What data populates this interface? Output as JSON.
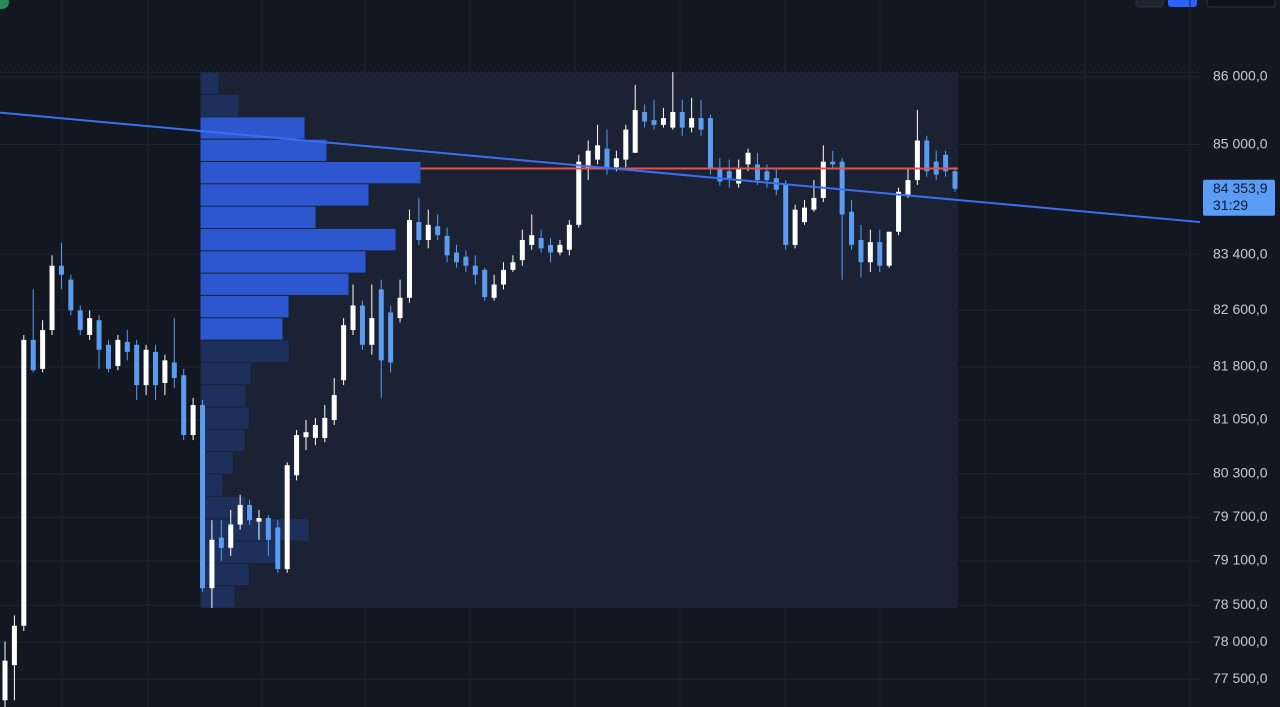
{
  "chart_data": {
    "type": "candlestick",
    "log_scale": true,
    "grid": true,
    "ylim": [
      77130,
      87150
    ],
    "yticks": [
      {
        "value": 86000,
        "label": "86 000,0"
      },
      {
        "value": 85000,
        "label": "85 000,0"
      },
      {
        "value": 83400,
        "label": "83 400,0"
      },
      {
        "value": 82600,
        "label": "82 600,0"
      },
      {
        "value": 81800,
        "label": "81 800,0"
      },
      {
        "value": 81050,
        "label": "81 050,0"
      },
      {
        "value": 80300,
        "label": "80 300,0"
      },
      {
        "value": 79700,
        "label": "79 700,0"
      },
      {
        "value": 79100,
        "label": "79 100,0"
      },
      {
        "value": 78500,
        "label": "78 500,0"
      },
      {
        "value": 78000,
        "label": "78 000,0"
      },
      {
        "value": 77500,
        "label": "77 500,0"
      }
    ],
    "up_color": "#ffffff",
    "down_color": "#5b9cf0",
    "candles": [
      [
        77220,
        78010,
        77130,
        77750
      ],
      [
        77690,
        78360,
        77220,
        78220
      ],
      [
        78220,
        82250,
        78150,
        82180
      ],
      [
        82180,
        82900,
        81720,
        81750
      ],
      [
        81770,
        82460,
        81720,
        82320
      ],
      [
        82320,
        83390,
        82250,
        83240
      ],
      [
        83240,
        83570,
        82900,
        83110
      ],
      [
        83040,
        83110,
        82530,
        82600
      ],
      [
        82600,
        82670,
        82250,
        82320
      ],
      [
        82250,
        82600,
        82180,
        82490
      ],
      [
        82460,
        82530,
        81770,
        82040
      ],
      [
        82110,
        82180,
        81720,
        81770
      ],
      [
        81810,
        82250,
        81750,
        82180
      ],
      [
        82150,
        82320,
        81890,
        82010
      ],
      [
        82110,
        82180,
        81330,
        81540
      ],
      [
        81540,
        82110,
        81400,
        82040
      ],
      [
        82010,
        82110,
        81330,
        81540
      ],
      [
        81570,
        81970,
        81400,
        81890
      ],
      [
        81860,
        82490,
        81500,
        81640
      ],
      [
        81680,
        81770,
        80770,
        80840
      ],
      [
        80840,
        81360,
        80770,
        81260
      ],
      [
        81260,
        81330,
        78680,
        78730
      ],
      [
        78730,
        79660,
        78460,
        79390
      ],
      [
        79420,
        79660,
        79100,
        79280
      ],
      [
        79280,
        79800,
        79170,
        79600
      ],
      [
        79600,
        80010,
        79530,
        79870
      ],
      [
        79870,
        79940,
        79600,
        79660
      ],
      [
        79640,
        79800,
        79390,
        79690
      ],
      [
        79690,
        79730,
        79170,
        79390
      ],
      [
        79560,
        79660,
        78940,
        78990
      ],
      [
        78990,
        80460,
        78940,
        80420
      ],
      [
        80280,
        80910,
        80210,
        80840
      ],
      [
        80810,
        81050,
        80630,
        80880
      ],
      [
        80800,
        81080,
        80700,
        80980
      ],
      [
        80800,
        81260,
        80740,
        81080
      ],
      [
        81050,
        81640,
        80980,
        81400
      ],
      [
        81610,
        82490,
        81540,
        82390
      ],
      [
        82320,
        82970,
        82250,
        82670
      ],
      [
        82670,
        82740,
        82040,
        82110
      ],
      [
        82110,
        82970,
        81970,
        82490
      ],
      [
        82900,
        83040,
        81360,
        81890
      ],
      [
        82570,
        82670,
        81720,
        81860
      ],
      [
        82490,
        83040,
        82430,
        82780
      ],
      [
        82780,
        84050,
        82710,
        83900
      ],
      [
        83870,
        84220,
        83540,
        83610
      ],
      [
        83610,
        84050,
        83490,
        83830
      ],
      [
        83810,
        83980,
        83610,
        83680
      ],
      [
        83670,
        83790,
        83290,
        83390
      ],
      [
        83430,
        83540,
        83210,
        83290
      ],
      [
        83370,
        83460,
        83150,
        83240
      ],
      [
        83240,
        83390,
        82970,
        83110
      ],
      [
        83180,
        83210,
        82740,
        82790
      ],
      [
        82780,
        83110,
        82740,
        82970
      ],
      [
        82970,
        83290,
        82900,
        83180
      ],
      [
        83180,
        83390,
        83150,
        83290
      ],
      [
        83320,
        83760,
        83240,
        83610
      ],
      [
        83540,
        83980,
        83470,
        83680
      ],
      [
        83640,
        83760,
        83430,
        83490
      ],
      [
        83540,
        83640,
        83290,
        83430
      ],
      [
        83430,
        83610,
        83390,
        83540
      ],
      [
        83470,
        83900,
        83390,
        83830
      ],
      [
        83830,
        84850,
        83790,
        84750
      ],
      [
        84640,
        85060,
        84480,
        84910
      ],
      [
        84780,
        85290,
        84710,
        84990
      ],
      [
        84940,
        85220,
        84560,
        84640
      ],
      [
        84670,
        84910,
        84610,
        84800
      ],
      [
        84780,
        85290,
        84670,
        85220
      ],
      [
        84880,
        85880,
        84880,
        85510
      ],
      [
        85480,
        85590,
        85250,
        85340
      ],
      [
        85360,
        85660,
        85220,
        85290
      ],
      [
        85290,
        85540,
        85250,
        85390
      ],
      [
        85250,
        86070,
        85220,
        85480
      ],
      [
        85480,
        85660,
        85130,
        85250
      ],
      [
        85250,
        85690,
        85180,
        85390
      ],
      [
        85390,
        85660,
        85130,
        85220
      ],
      [
        85390,
        85440,
        84560,
        84640
      ],
      [
        84640,
        84800,
        84400,
        84460
      ],
      [
        84610,
        84780,
        84370,
        84510
      ],
      [
        84430,
        84780,
        84370,
        84640
      ],
      [
        84710,
        84940,
        84610,
        84880
      ],
      [
        84710,
        84880,
        84410,
        84480
      ],
      [
        84610,
        84710,
        84370,
        84480
      ],
      [
        84510,
        84640,
        84260,
        84340
      ],
      [
        84410,
        84480,
        83470,
        83540
      ],
      [
        83540,
        84120,
        83490,
        84050
      ],
      [
        83870,
        84190,
        83830,
        84080
      ],
      [
        84050,
        84480,
        84020,
        84220
      ],
      [
        84220,
        84990,
        84160,
        84750
      ],
      [
        84750,
        84910,
        84640,
        84710
      ],
      [
        84750,
        84800,
        83040,
        83980
      ],
      [
        84020,
        84190,
        83470,
        83540
      ],
      [
        83610,
        83830,
        83070,
        83290
      ],
      [
        83290,
        83760,
        83150,
        83580
      ],
      [
        83580,
        83760,
        83150,
        83240
      ],
      [
        83240,
        83730,
        83210,
        83730
      ],
      [
        83730,
        84370,
        83680,
        84310
      ],
      [
        84260,
        84640,
        84220,
        84480
      ],
      [
        84480,
        85510,
        84410,
        85060
      ],
      [
        85060,
        85130,
        84530,
        84610
      ],
      [
        84750,
        84910,
        84480,
        84560
      ],
      [
        84850,
        84910,
        84530,
        84610
      ],
      [
        84610,
        84670,
        84310,
        84353.9
      ]
    ],
    "volume_profile": {
      "range": [
        78460,
        86070
      ],
      "volumes": [
        18,
        38,
        104,
        126,
        220,
        168,
        115,
        195,
        165,
        148,
        88,
        82,
        88,
        50,
        45,
        48,
        44,
        32,
        22,
        45,
        108,
        80,
        48,
        34
      ],
      "in_value_area": [
        false,
        false,
        true,
        true,
        true,
        true,
        true,
        true,
        true,
        true,
        true,
        true,
        false,
        false,
        false,
        false,
        false,
        false,
        false,
        false,
        false,
        false,
        false,
        false
      ],
      "value_area_color": "#2d5bd8",
      "outside_color": "#1e3363"
    },
    "poc_price": 84650,
    "poc_color": "#e8504a",
    "trendline": {
      "start": 85470,
      "end": 83870,
      "color": "#3b6ef0"
    },
    "last_price": {
      "value": 84353.9,
      "label": "84 353,9"
    },
    "countdown": "31:29"
  }
}
